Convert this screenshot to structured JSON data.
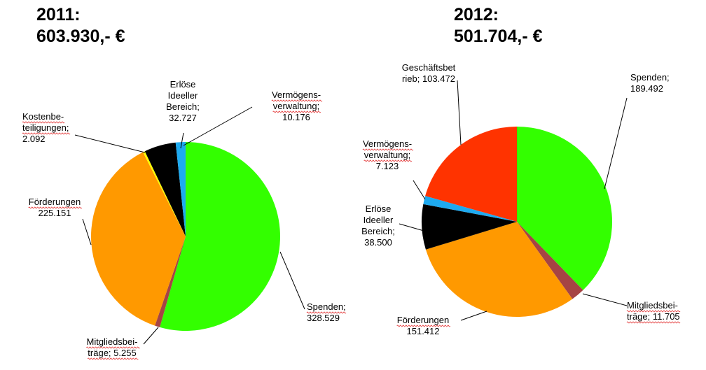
{
  "titles": [
    {
      "year": "2011:",
      "total": "603.930,- €"
    },
    {
      "year": "2012:",
      "total": "501.704,- €"
    }
  ],
  "chart_data": [
    {
      "type": "pie",
      "title": "2011: 603.930,- €",
      "slices": [
        {
          "name": "Spenden",
          "value": 328529,
          "color": "#33ff00",
          "label": [
            "Spenden;",
            "328.529"
          ],
          "anchor": "start",
          "underline": [
            0
          ]
        },
        {
          "name": "Mitgliedsbeiträge",
          "value": 5255,
          "color": "#a64444",
          "label": [
            "Mitgliedsbei-",
            "träge; 5.255"
          ],
          "anchor": "middle",
          "underline": [
            0,
            1
          ]
        },
        {
          "name": "Förderungen",
          "value": 225151,
          "color": "#ff9900",
          "label": [
            "Förderungen",
            "225.151"
          ],
          "anchor": "middle",
          "underline": [
            0
          ]
        },
        {
          "name": "Kostenbeteiligungen",
          "value": 2092,
          "color": "#ffff00",
          "label": [
            "Kostenbe-",
            "teiligungen;",
            "2.092"
          ],
          "anchor": "start",
          "underline": [
            0,
            1
          ]
        },
        {
          "name": "Erlöse Ideeller Bereich",
          "value": 32727,
          "color": "#000000",
          "label": [
            "Erlöse",
            "Ideeller",
            "Bereich;",
            "32.727"
          ],
          "anchor": "middle",
          "underline": []
        },
        {
          "name": "Vermögensverwaltung",
          "value": 10176,
          "color": "#1eaaf0",
          "label": [
            "Vermögens-",
            "verwaltung;",
            "10.176"
          ],
          "anchor": "middle",
          "underline": [
            0,
            1
          ]
        }
      ]
    },
    {
      "type": "pie",
      "title": "2012: 501.704,- €",
      "slices": [
        {
          "name": "Spenden",
          "value": 189492,
          "color": "#33ff00",
          "label": [
            "Spenden;",
            "189.492"
          ],
          "anchor": "start",
          "underline": []
        },
        {
          "name": "Mitgliedsbeiträge",
          "value": 11705,
          "color": "#a64444",
          "label": [
            "Mitgliedsbei-",
            "träge; 11.705"
          ],
          "anchor": "start",
          "underline": [
            0,
            1
          ]
        },
        {
          "name": "Förderungen",
          "value": 151412,
          "color": "#ff9900",
          "label": [
            "Förderungen",
            "151.412"
          ],
          "anchor": "middle",
          "underline": [
            0
          ]
        },
        {
          "name": "Erlöse Ideeller Bereich",
          "value": 38500,
          "color": "#000000",
          "label": [
            "Erlöse",
            "Ideeller",
            "Bereich;",
            "38.500"
          ],
          "anchor": "middle",
          "underline": []
        },
        {
          "name": "Vermögensverwaltung",
          "value": 7123,
          "color": "#1eaaf0",
          "label": [
            "Vermögens-",
            "verwaltung;",
            "7.123"
          ],
          "anchor": "middle",
          "underline": [
            0,
            1
          ]
        },
        {
          "name": "Geschäftsbetrieb",
          "value": 103472,
          "color": "#ff3300",
          "label": [
            "Geschäftsbet",
            "rieb; 103.472"
          ],
          "anchor": "middle",
          "underline": []
        }
      ]
    }
  ]
}
